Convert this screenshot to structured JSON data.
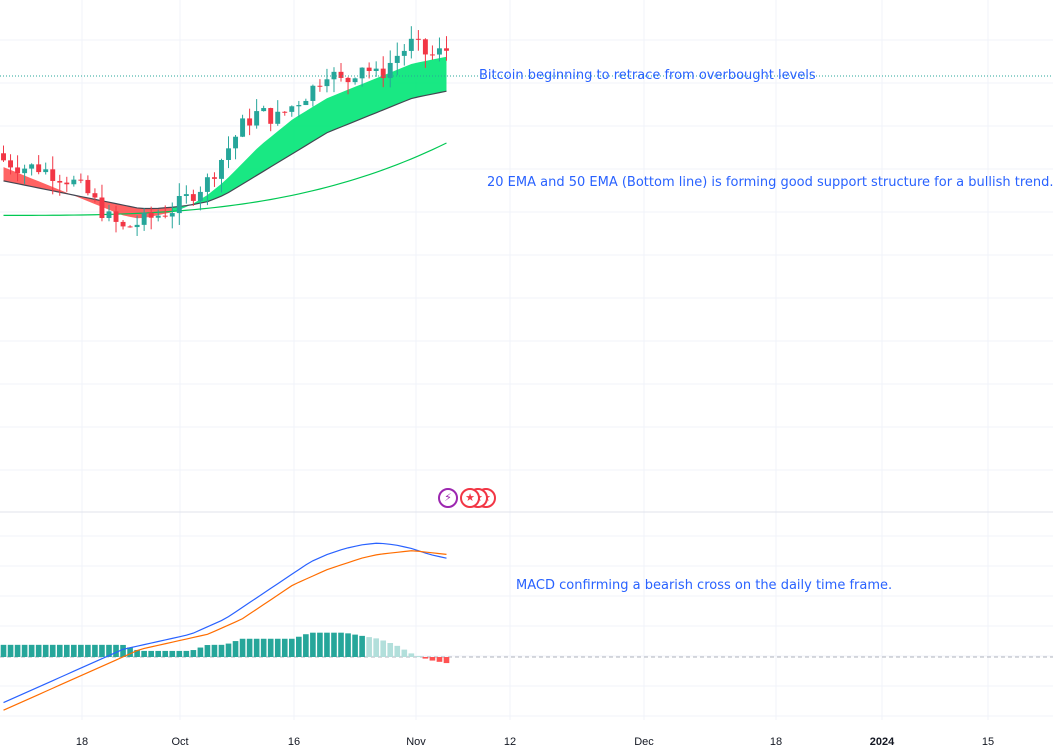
{
  "annotations": {
    "retrace": "Bitcoin beginning to retrace from overbought levels",
    "ema": "20 EMA and 50 EMA (Bottom line) is forming good support structure for a bullish trend.",
    "macd": "MACD confirming a bearish cross on the daily time frame."
  },
  "icons": {
    "event": "lightning-bolt-icon",
    "flags": "us-flag-icon"
  },
  "colors": {
    "bull": "#26a69a",
    "bear": "#f23645",
    "ema_fill_up": "#00e676",
    "ema_fill_down": "#ff5252",
    "ema50": "#00c853",
    "macd_line": "#2962ff",
    "signal_line": "#ff6d00",
    "hist_up": "#26a69a",
    "hist_up_fade": "#b2dfdb",
    "hist_down": "#ff5252",
    "annotation": "#2962ff"
  },
  "chart_data": {
    "type": "candlestick",
    "price_scale": {
      "min": 16,
      "max": 22.9
    },
    "candles": [
      [
        21.2,
        21.1,
        21.5,
        21.0
      ],
      [
        21.1,
        21.0,
        21.3,
        20.9
      ],
      [
        21.0,
        21.0,
        21.2,
        20.9
      ],
      [
        21.0,
        20.9,
        21.1,
        20.8
      ],
      [
        20.9,
        20.8,
        21.0,
        20.7
      ],
      [
        20.8,
        20.6,
        20.9,
        20.5
      ],
      [
        20.6,
        20.3,
        20.7,
        20.2
      ],
      [
        20.3,
        20.1,
        20.5,
        20.0
      ],
      [
        20.1,
        20.2,
        20.3,
        19.9
      ],
      [
        20.2,
        20.3,
        20.5,
        20.1
      ],
      [
        20.3,
        20.4,
        20.6,
        20.2
      ],
      [
        20.4,
        20.6,
        20.8,
        20.3
      ],
      [
        20.6,
        20.8,
        21.0,
        20.5
      ],
      [
        20.8,
        21.2,
        21.4,
        20.7
      ],
      [
        21.2,
        21.6,
        21.9,
        21.1
      ],
      [
        21.6,
        21.8,
        22.0,
        21.5
      ],
      [
        21.8,
        21.7,
        21.9,
        21.5
      ],
      [
        21.7,
        21.9,
        22.1,
        21.6
      ],
      [
        21.9,
        22.1,
        22.3,
        21.8
      ],
      [
        22.1,
        22.4,
        22.6,
        22.0
      ],
      [
        22.4,
        22.2,
        22.5,
        22.0
      ],
      [
        22.2,
        22.5,
        22.7,
        22.1
      ],
      [
        22.5,
        22.3,
        22.6,
        22.1
      ],
      [
        22.3,
        22.6,
        22.8,
        22.2
      ],
      [
        22.6,
        22.8,
        22.9,
        22.5
      ],
      [
        22.8,
        22.6,
        22.9,
        22.4
      ],
      [
        22.6,
        22.7,
        22.8,
        22.5
      ]
    ],
    "macd_line": [
      -1.2,
      -1.0,
      -0.8,
      -0.6,
      -0.4,
      -0.2,
      0.0,
      0.2,
      0.3,
      0.4,
      0.5,
      0.6,
      0.8,
      1.0,
      1.3,
      1.6,
      1.9,
      2.2,
      2.5,
      2.7,
      2.85,
      2.95,
      3.0,
      2.95,
      2.85,
      2.7,
      2.6
    ],
    "signal_line": [
      -1.4,
      -1.2,
      -1.0,
      -0.8,
      -0.6,
      -0.4,
      -0.2,
      0.0,
      0.2,
      0.3,
      0.4,
      0.5,
      0.6,
      0.8,
      1.0,
      1.3,
      1.6,
      1.9,
      2.1,
      2.3,
      2.45,
      2.6,
      2.7,
      2.75,
      2.8,
      2.75,
      2.7
    ],
    "ema20": [
      21.0,
      20.9,
      20.8,
      20.7,
      20.6,
      20.5,
      20.4,
      20.3,
      20.25,
      20.3,
      20.35,
      20.45,
      20.6,
      20.8,
      21.05,
      21.3,
      21.5,
      21.7,
      21.85,
      22.0,
      22.1,
      22.2,
      22.3,
      22.4,
      22.5,
      22.55,
      22.6
    ],
    "ema50": [
      20.8,
      20.75,
      20.7,
      20.65,
      20.6,
      20.55,
      20.5,
      20.45,
      20.4,
      20.4,
      20.42,
      20.45,
      20.5,
      20.6,
      20.75,
      20.9,
      21.05,
      21.2,
      21.35,
      21.5,
      21.6,
      21.7,
      21.8,
      21.9,
      22.0,
      22.05,
      22.1
    ],
    "xlabels": [
      "18",
      "Oct",
      "16",
      "Nov",
      "12",
      "Dec",
      "18",
      "2024",
      "15"
    ],
    "xlabels_bold": [
      "2024"
    ]
  }
}
